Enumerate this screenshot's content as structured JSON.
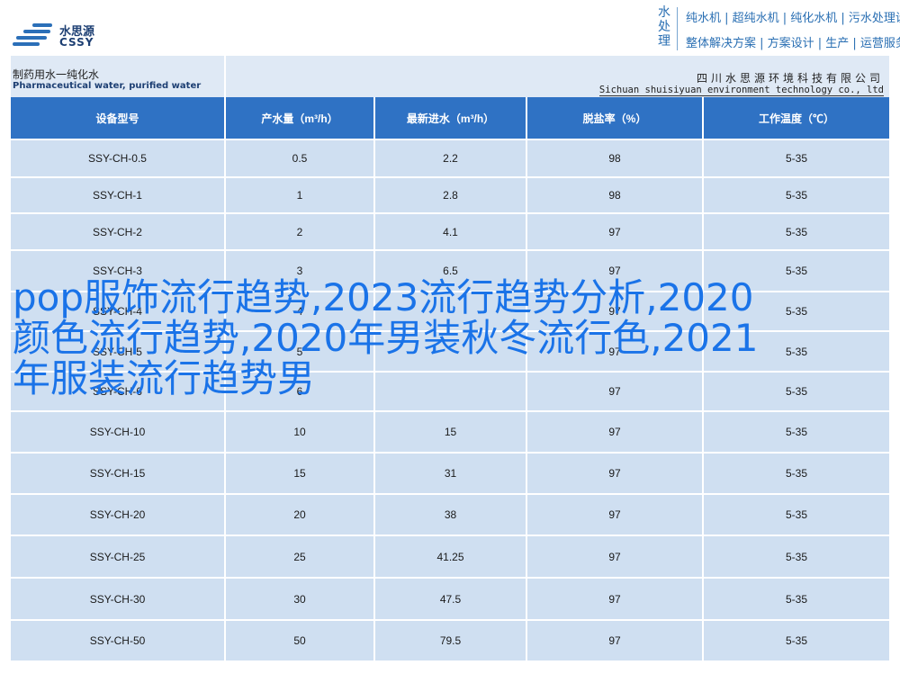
{
  "header": {
    "logo_cn": "水思源",
    "logo_en": "CSSY",
    "vertical_tag": [
      "水",
      "处",
      "理"
    ],
    "slogan_line1": "纯水机 | 超纯水机 | 纯化水机 | 污水处理设备",
    "slogan_line2": "整体解决方案 | 方案设计 | 生产 | 运营服务"
  },
  "band": {
    "title_cn": "制药用水一纯化水",
    "title_en": "Pharmaceutical water, purified water",
    "company_cn": "四川水思源环境科技有限公司",
    "company_en": "Sichuan shuisiyuan environment technology co., ltd"
  },
  "table": {
    "headers": [
      "设备型号",
      "产水量（m³/h）",
      "最新进水（m³/h）",
      "脱盐率（%）",
      "工作温度（℃）"
    ],
    "rows": [
      [
        "SSY-CH-0.5",
        "0.5",
        "2.2",
        "98",
        "5-35"
      ],
      [
        "SSY-CH-1",
        "1",
        "2.8",
        "98",
        "5-35"
      ],
      [
        "SSY-CH-2",
        "2",
        "4.1",
        "97",
        "5-35"
      ],
      [
        "SSY-CH-3",
        "3",
        "6.5",
        "97",
        "5-35"
      ],
      [
        "SSY-CH-4",
        "4",
        "",
        "97",
        "5-35"
      ],
      [
        "SSY-CH-5",
        "5",
        "",
        "97",
        "5-35"
      ],
      [
        "SSY-CH-6",
        "6",
        "",
        "97",
        "5-35"
      ],
      [
        "SSY-CH-10",
        "10",
        "15",
        "97",
        "5-35"
      ],
      [
        "SSY-CH-15",
        "15",
        "31",
        "97",
        "5-35"
      ],
      [
        "SSY-CH-20",
        "20",
        "38",
        "97",
        "5-35"
      ],
      [
        "SSY-CH-25",
        "25",
        "41.25",
        "97",
        "5-35"
      ],
      [
        "SSY-CH-30",
        "30",
        "47.5",
        "97",
        "5-35"
      ],
      [
        "SSY-CH-50",
        "50",
        "79.5",
        "97",
        "5-35"
      ]
    ]
  },
  "overlay_title": "pop服饰流行趋势,2023流行趋势分析,2020颜色流行趋势,2020年男装秋冬流行色,2021年服装流行趋势男"
}
